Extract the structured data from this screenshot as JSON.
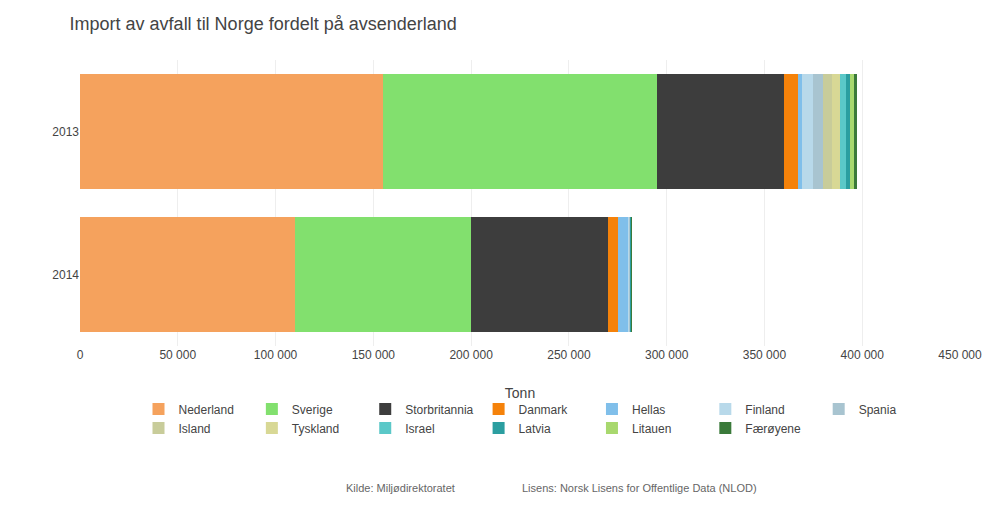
{
  "chart_data": {
    "type": "bar",
    "orientation": "horizontal",
    "stacked": true,
    "title": "Import av avfall til Norge fordelt på avsenderland",
    "x_label": "Tonn",
    "categories": [
      "2013",
      "2014"
    ],
    "series": [
      {
        "name": "Nederland",
        "color": "#F5A25D",
        "values": [
          155000,
          110000
        ]
      },
      {
        "name": "Sverige",
        "color": "#82E06E",
        "values": [
          140000,
          90000
        ]
      },
      {
        "name": "Storbritannia",
        "color": "#3D3D3D",
        "values": [
          65000,
          70000
        ]
      },
      {
        "name": "Danmark",
        "color": "#F5820A",
        "values": [
          7000,
          5000
        ]
      },
      {
        "name": "Hellas",
        "color": "#80BFEA",
        "values": [
          2000,
          5500
        ]
      },
      {
        "name": "Finland",
        "color": "#B8D9EA",
        "values": [
          6000,
          500
        ]
      },
      {
        "name": "Spania",
        "color": "#A8C4D0",
        "values": [
          5000,
          300
        ]
      },
      {
        "name": "Island",
        "color": "#C8CC9A",
        "values": [
          4500,
          200
        ]
      },
      {
        "name": "Tyskland",
        "color": "#D8D895",
        "values": [
          4000,
          150
        ]
      },
      {
        "name": "Israel",
        "color": "#5BC8C8",
        "values": [
          3000,
          100
        ]
      },
      {
        "name": "Latvia",
        "color": "#2B9EA0",
        "values": [
          2500,
          80
        ]
      },
      {
        "name": "Litauen",
        "color": "#A8D86E",
        "values": [
          2000,
          70
        ]
      },
      {
        "name": "Færøyene",
        "color": "#3A7A3A",
        "values": [
          1500,
          50
        ]
      }
    ],
    "xlim": [
      0,
      450000
    ],
    "xticks": [
      0,
      {
        "value": 50000,
        "label": "50 000"
      },
      {
        "value": 100000,
        "label": "100 000"
      },
      {
        "value": 150000,
        "label": "150 000"
      },
      {
        "value": 200000,
        "label": "200 000"
      },
      {
        "value": 250000,
        "label": "250 000"
      },
      {
        "value": 300000,
        "label": "300 000"
      },
      {
        "value": 350000,
        "label": "350 000"
      },
      {
        "value": 400000,
        "label": "400 000"
      },
      {
        "value": 450000,
        "label": "450 000"
      }
    ],
    "grid": true,
    "legend": "bottom",
    "annotations": [
      "Kilde: Miljødirektoratet",
      "Lisens: Norsk Lisens for Offentlige Data (NLOD)"
    ]
  }
}
